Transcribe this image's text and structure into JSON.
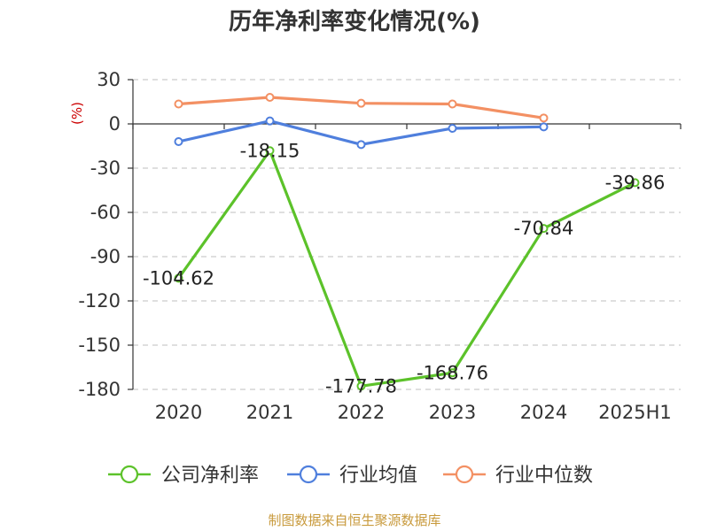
{
  "chart_data": {
    "type": "line",
    "title": "历年净利率变化情况(%)",
    "ylabel": "(%)",
    "categories": [
      "2020",
      "2021",
      "2022",
      "2023",
      "2024",
      "2025H1"
    ],
    "yticks": [
      "30",
      "0",
      "-30",
      "-60",
      "-90",
      "-120",
      "-150",
      "-180"
    ],
    "ylim": [
      -180,
      30
    ],
    "grid": true,
    "legend_position": "bottom",
    "series": [
      {
        "name": "公司净利率",
        "color": "#5cc22a",
        "values": [
          -104.62,
          -18.15,
          -177.78,
          -168.76,
          -70.84,
          -39.86
        ],
        "labels": [
          "-104.62",
          "-18.15",
          "-177.78",
          "-168.76",
          "-70.84",
          "-39.86"
        ]
      },
      {
        "name": "行业均值",
        "color": "#4f7fdd",
        "values": [
          -12,
          2,
          -14,
          -3,
          -2,
          null
        ]
      },
      {
        "name": "行业中位数",
        "color": "#f39063",
        "values": [
          13.5,
          18,
          14,
          13.5,
          4,
          null
        ]
      }
    ]
  },
  "source": "制图数据来自恒生聚源数据库",
  "colors": {
    "unit": "#cc0000",
    "source": "#c89a3c",
    "axis": "#333333",
    "grid": "#cccccc"
  }
}
